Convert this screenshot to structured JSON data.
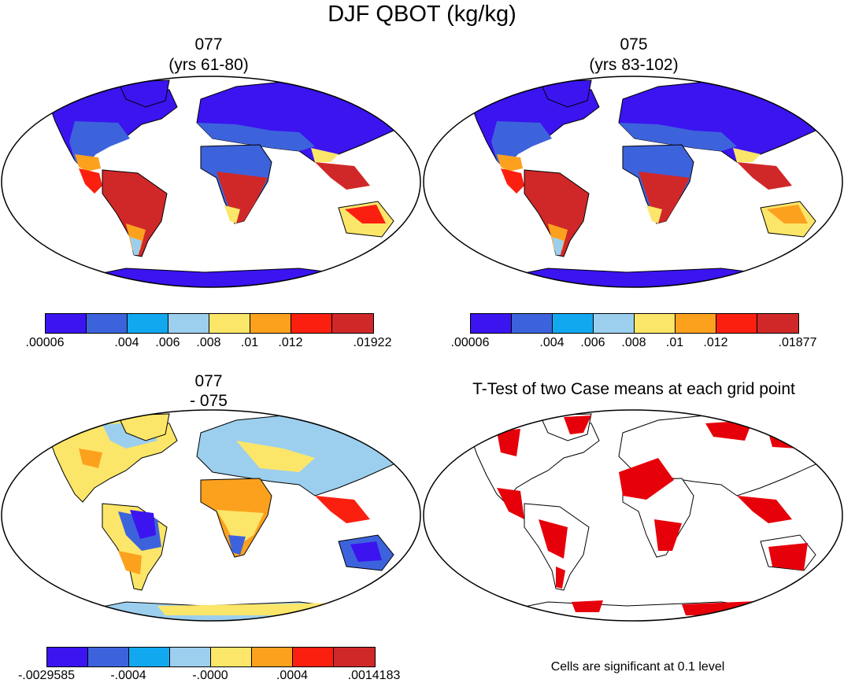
{
  "title": "DJF QBOT (kg/kg)",
  "panels": {
    "p1": {
      "title_line1": "077",
      "title_line2": "(yrs 61-80)"
    },
    "p2": {
      "title_line1": "075",
      "title_line2": "(yrs 83-102)"
    },
    "p3": {
      "title_line1": "077",
      "title_line2": "- 075"
    },
    "p4": {
      "title": "T-Test of two Case means at each grid point",
      "note": "Cells are significant at 0.1 level"
    }
  },
  "colorbars": {
    "cb1": {
      "colors": [
        "#3b14f0",
        "#3d63dc",
        "#12a8f0",
        "#9ccfee",
        "#fce669",
        "#fca11e",
        "#fb1f10",
        "#d02828"
      ],
      "labels": [
        ".00006",
        ".004",
        ".006",
        ".008",
        ".01",
        ".012",
        ".01922"
      ]
    },
    "cb2": {
      "colors": [
        "#3b14f0",
        "#3d63dc",
        "#12a8f0",
        "#9ccfee",
        "#fce669",
        "#fca11e",
        "#fb1f10",
        "#d02828"
      ],
      "labels": [
        ".00006",
        ".004",
        ".006",
        ".008",
        ".01",
        ".012",
        ".01877"
      ]
    },
    "cb3": {
      "colors": [
        "#3b14f0",
        "#3d63dc",
        "#12a8f0",
        "#9ccfee",
        "#fce669",
        "#fca11e",
        "#fb1f10",
        "#d02828"
      ],
      "labels": [
        "-.0029585",
        "-.0004",
        "-.0000",
        ".0004",
        ".0014183"
      ]
    }
  },
  "significance_color": "#e6000a"
}
